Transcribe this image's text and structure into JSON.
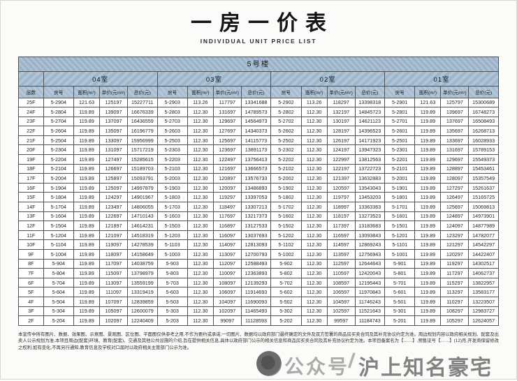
{
  "page": {
    "title": "一房一价表",
    "subtitle": "INDIVIDUAL UNIT PRICE LIST"
  },
  "table": {
    "building": "5号楼",
    "floor_col_header": "层数",
    "groups": [
      "04室",
      "03室",
      "02室",
      "01室"
    ],
    "unit_headers": [
      "房号",
      "面积(m²)",
      "单价(元/m²)",
      "总价(元)"
    ],
    "rows": [
      {
        "floor": "25F",
        "units": [
          [
            "5-2904",
            "121.63",
            "125197",
            "15227711"
          ],
          [
            "5-2903",
            "113.26",
            "117797",
            "13341688"
          ],
          [
            "5-2902",
            "113.26",
            "118297",
            "13398318"
          ],
          [
            "5-2901",
            "121.63",
            "125797",
            "15300689"
          ]
        ]
      },
      {
        "floor": "24F",
        "units": [
          [
            "5-2804",
            "119.89",
            "139097",
            "16676339"
          ],
          [
            "5-2803",
            "112.30",
            "131697",
            "14789573"
          ],
          [
            "5-2802",
            "112.30",
            "132197",
            "14845723"
          ],
          [
            "5-2801",
            "119.89",
            "139697",
            "16748273"
          ]
        ]
      },
      {
        "floor": "23F",
        "units": [
          [
            "5-2704",
            "119.89",
            "137097",
            "16436559"
          ],
          [
            "5-2703",
            "112.30",
            "129697",
            "14564973"
          ],
          [
            "5-2702",
            "112.30",
            "130197",
            "14621123"
          ],
          [
            "5-2701",
            "119.89",
            "137697",
            "16508493"
          ]
        ]
      },
      {
        "floor": "22F",
        "units": [
          [
            "5-2604",
            "119.89",
            "135097",
            "16196779"
          ],
          [
            "5-2603",
            "112.30",
            "127697",
            "14340373"
          ],
          [
            "5-2602",
            "112.30",
            "128197",
            "14396523"
          ],
          [
            "5-2601",
            "119.89",
            "135697",
            "16268713"
          ]
        ]
      },
      {
        "floor": "21F",
        "units": [
          [
            "5-2504",
            "119.89",
            "133097",
            "15956999"
          ],
          [
            "5-2503",
            "112.30",
            "125697",
            "14115773"
          ],
          [
            "5-2502",
            "112.30",
            "126197",
            "14171923"
          ],
          [
            "5-2501",
            "119.89",
            "133697",
            "16028933"
          ]
        ]
      },
      {
        "floor": "20F",
        "units": [
          [
            "5-2304",
            "119.89",
            "131097",
            "15717219"
          ],
          [
            "5-2303",
            "112.30",
            "123697",
            "13891173"
          ],
          [
            "5-2302",
            "112.30",
            "124197",
            "13947323"
          ],
          [
            "5-2301",
            "119.89",
            "131697",
            "15789153"
          ]
        ]
      },
      {
        "floor": "19F",
        "units": [
          [
            "5-2204",
            "119.89",
            "127497",
            "15285615"
          ],
          [
            "5-2203",
            "112.30",
            "122497",
            "13756413"
          ],
          [
            "5-2202",
            "112.30",
            "122997",
            "13812563"
          ],
          [
            "5-2201",
            "119.89",
            "129697",
            "15549373"
          ]
        ]
      },
      {
        "floor": "18F",
        "units": [
          [
            "5-2104",
            "119.89",
            "126697",
            "15189703"
          ],
          [
            "5-2103",
            "112.30",
            "121697",
            "13666573"
          ],
          [
            "5-2102",
            "112.30",
            "122197",
            "13722723"
          ],
          [
            "5-2101",
            "119.89",
            "128897",
            "15453461"
          ]
        ]
      },
      {
        "floor": "17F",
        "units": [
          [
            "5-2004",
            "119.89",
            "125897",
            "15093791"
          ],
          [
            "5-2003",
            "112.30",
            "120897",
            "13576733"
          ],
          [
            "5-2002",
            "112.30",
            "121397",
            "13632883"
          ],
          [
            "5-2001",
            "119.89",
            "128097",
            "15357549"
          ]
        ]
      },
      {
        "floor": "16F",
        "units": [
          [
            "5-1904",
            "119.89",
            "125097",
            "14997879"
          ],
          [
            "5-1903",
            "112.30",
            "120097",
            "13486893"
          ],
          [
            "5-1902",
            "112.30",
            "120597",
            "13543043"
          ],
          [
            "5-1901",
            "119.89",
            "127297",
            "15261637"
          ]
        ]
      },
      {
        "floor": "15F",
        "units": [
          [
            "5-1804",
            "119.89",
            "124297",
            "14901967"
          ],
          [
            "5-1803",
            "112.30",
            "119297",
            "13397053"
          ],
          [
            "5-1802",
            "112.30",
            "119797",
            "13453203"
          ],
          [
            "5-1801",
            "119.89",
            "126497",
            "15165725"
          ]
        ]
      },
      {
        "floor": "14F",
        "units": [
          [
            "5-1704",
            "119.89",
            "123497",
            "14806055"
          ],
          [
            "5-1703",
            "112.30",
            "118497",
            "13307213"
          ],
          [
            "5-1702",
            "112.30",
            "118997",
            "13363363"
          ],
          [
            "5-1701",
            "119.89",
            "125697",
            "15069813"
          ]
        ]
      },
      {
        "floor": "13F",
        "units": [
          [
            "5-1604",
            "119.89",
            "122697",
            "14710143"
          ],
          [
            "5-1603",
            "112.30",
            "117697",
            "13217373"
          ],
          [
            "5-1602",
            "112.30",
            "118197",
            "13273523"
          ],
          [
            "5-1601",
            "119.89",
            "124897",
            "14973901"
          ]
        ]
      },
      {
        "floor": "12F",
        "units": [
          [
            "5-1504",
            "119.89",
            "121897",
            "14614231"
          ],
          [
            "5-1503",
            "112.30",
            "116897",
            "13127533"
          ],
          [
            "5-1502",
            "112.30",
            "117397",
            "13183683"
          ],
          [
            "5-1501",
            "119.89",
            "124097",
            "14877989"
          ]
        ]
      },
      {
        "floor": "11F",
        "units": [
          [
            "5-1204",
            "119.89",
            "121097",
            "14518319"
          ],
          [
            "5-1203",
            "112.30",
            "116097",
            "13037693"
          ],
          [
            "5-1202",
            "112.30",
            "116597",
            "13093843"
          ],
          [
            "5-1201",
            "119.89",
            "123297",
            "14782077"
          ]
        ]
      },
      {
        "floor": "10F",
        "units": [
          [
            "5-1104",
            "119.89",
            "119097",
            "14278539"
          ],
          [
            "5-1103",
            "112.30",
            "114097",
            "12813093"
          ],
          [
            "5-1102",
            "112.30",
            "114597",
            "12869243"
          ],
          [
            "5-1101",
            "119.89",
            "121297",
            "14542297"
          ]
        ]
      },
      {
        "floor": "9F",
        "units": [
          [
            "5-1004",
            "119.89",
            "118097",
            "14158649"
          ],
          [
            "5-1003",
            "112.30",
            "113097",
            "12700793"
          ],
          [
            "5-1002",
            "112.30",
            "113597",
            "12756943"
          ],
          [
            "5-1001",
            "119.89",
            "120297",
            "14422407"
          ]
        ]
      },
      {
        "floor": "8F",
        "units": [
          [
            "5-904",
            "119.89",
            "117097",
            "14038759"
          ],
          [
            "5-903",
            "112.30",
            "112097",
            "12588493"
          ],
          [
            "5-902",
            "112.30",
            "112597",
            "12644643"
          ],
          [
            "5-901",
            "119.89",
            "119297",
            "14302517"
          ]
        ]
      },
      {
        "floor": "7F",
        "units": [
          [
            "5-804",
            "119.89",
            "115097",
            "13798979"
          ],
          [
            "5-803",
            "112.30",
            "110097",
            "12363893"
          ],
          [
            "5-802",
            "112.30",
            "110597",
            "12420043"
          ],
          [
            "5-801",
            "119.89",
            "117297",
            "14062737"
          ]
        ]
      },
      {
        "floor": "6F",
        "units": [
          [
            "5-704",
            "119.89",
            "113097",
            "13559199"
          ],
          [
            "5-703",
            "112.30",
            "108097",
            "12139293"
          ],
          [
            "5-702",
            "112.30",
            "108597",
            "12195443"
          ],
          [
            "5-701",
            "119.89",
            "115297",
            "13822957"
          ]
        ]
      },
      {
        "floor": "5F",
        "units": [
          [
            "5-604",
            "119.89",
            "111097",
            "13319419"
          ],
          [
            "5-603",
            "112.30",
            "106097",
            "11914693"
          ],
          [
            "5-602",
            "112.30",
            "106597",
            "11970843"
          ],
          [
            "5-601",
            "119.89",
            "113297",
            "13583177"
          ]
        ]
      },
      {
        "floor": "4F",
        "units": [
          [
            "5-504",
            "119.89",
            "107097",
            "12839859"
          ],
          [
            "5-503",
            "112.30",
            "104097",
            "11690093"
          ],
          [
            "5-502",
            "112.30",
            "104597",
            "11746243"
          ],
          [
            "5-501",
            "119.89",
            "110297",
            "13223507"
          ]
        ]
      },
      {
        "floor": "3F",
        "units": [
          [
            "5-304",
            "119.89",
            "105097",
            "12600079"
          ],
          [
            "5-303",
            "112.30",
            "102097",
            "11465493"
          ],
          [
            "5-302",
            "112.30",
            "102597",
            "11521643"
          ],
          [
            "5-301",
            "119.89",
            "108297",
            "12983727"
          ]
        ]
      },
      {
        "floor": "2F",
        "units": [
          [
            "5-204",
            "119.89",
            "102097",
            "12240409"
          ],
          [
            "5-203",
            "112.30",
            "99097",
            "11128593"
          ],
          [
            "5-202",
            "112.30",
            "99597",
            "11184743"
          ],
          [
            "5-201",
            "119.89",
            "105297",
            "12624057"
          ]
        ]
      }
    ]
  },
  "footer": {
    "disclaimer": "本宣传中所有图片、数据、效果图、示意图、景观图、区位图、平面图仅供参考之用,不作为要约或承诺,一切图片、数据均以政府部门最终确定的文件及双方签署的商品房买卖合同及其补充协议约定为准。周边规划内容以政府相关规划、配套及出卖人公示规划为准,本项目周边(配套)环境、教育(配套)、交通及其他公共设施的介绍,旨在提供相关信息,具体以政府部门公示的相关信息和商品房买卖合同及其补充协议约定为准。本项目备案名为【……】,预售证号【……】(12)月,开发商保留修改之权利,如有变化,不再另行通知,教育信息及学校对口届时以政府相关主管部门公示为准。"
  },
  "watermark": {
    "text1": "公众号",
    "separator": "/",
    "text2": "沪上知名豪宅"
  },
  "colors": {
    "header_blue": "#a6bdd2",
    "banner_blue": "#a3bacf",
    "colhead_blue": "#aec2d5",
    "border": "#4f5255",
    "page_bg": "#fbfbf9"
  }
}
